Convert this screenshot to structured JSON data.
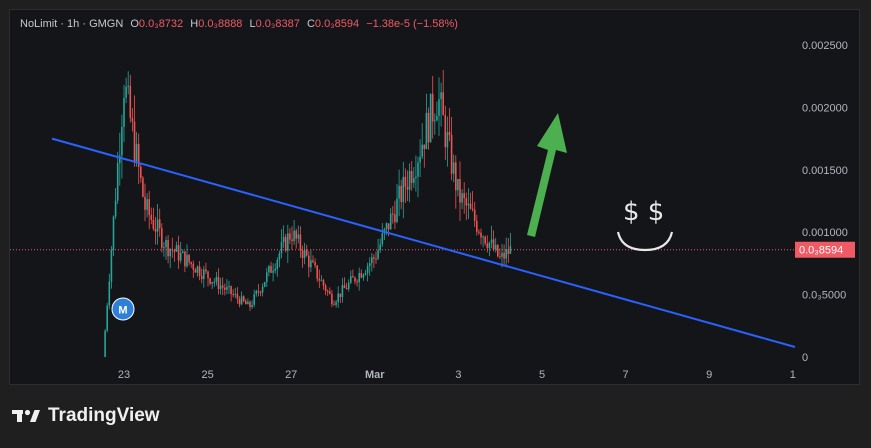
{
  "legend": {
    "symbol": "NoLimit · 1h · GMGN",
    "o_label": "O",
    "o_value": "0.0₃8732",
    "h_label": "H",
    "h_value": "0.0₃8888",
    "l_label": "L",
    "l_value": "0.0₃8387",
    "c_label": "C",
    "c_value": "0.0₃8594",
    "change": "−1.38e-5 (−1.58%)"
  },
  "brand": {
    "name": "TradingView",
    "icon": "tradingview-logo-icon"
  },
  "colors": {
    "up": "#26a69a",
    "down": "#ef5350",
    "trendline": "#2962ff",
    "arrow": "#4caf50",
    "price_label_bg": "#f05a64",
    "background": "#141519"
  },
  "chart_data": {
    "type": "candlestick",
    "x_ticks": [
      "23",
      "25",
      "27",
      "Mar",
      "3",
      "5",
      "7",
      "9",
      "1"
    ],
    "y_ticks": [
      "0.002500",
      "0.002000",
      "0.001500",
      "0.001000",
      "0.0₃5000",
      "0"
    ],
    "ylim": [
      0,
      0.0025
    ],
    "current_price_label": "0.0₃8594",
    "current_price": 0.0008594,
    "marker_label": "M",
    "annotations": {
      "dollar_signs": "$ $"
    },
    "series_close_approx": [
      {
        "x": "22 Feb 12:00",
        "y": 0.0
      },
      {
        "x": "23 Feb 00:00",
        "y": 0.0022
      },
      {
        "x": "23 Feb 12:00",
        "y": 0.0012
      },
      {
        "x": "24 Feb 00:00",
        "y": 0.0009
      },
      {
        "x": "25 Feb 00:00",
        "y": 0.00065
      },
      {
        "x": "26 Feb 00:00",
        "y": 0.0004
      },
      {
        "x": "27 Feb 00:00",
        "y": 0.001
      },
      {
        "x": "28 Feb 00:00",
        "y": 0.00045
      },
      {
        "x": "1 Mar 00:00",
        "y": 0.0008
      },
      {
        "x": "2 Mar 00:00",
        "y": 0.0016
      },
      {
        "x": "2 Mar 12:00",
        "y": 0.0021
      },
      {
        "x": "3 Mar 00:00",
        "y": 0.0013
      },
      {
        "x": "4 Mar 00:00",
        "y": 0.00078
      },
      {
        "x": "4 Mar 06:00",
        "y": 0.00086
      }
    ],
    "trendline": {
      "start": {
        "x": "22 Feb",
        "y": 0.00175
      },
      "end": {
        "x": "10 Mar",
        "y": 8e-05
      }
    }
  }
}
